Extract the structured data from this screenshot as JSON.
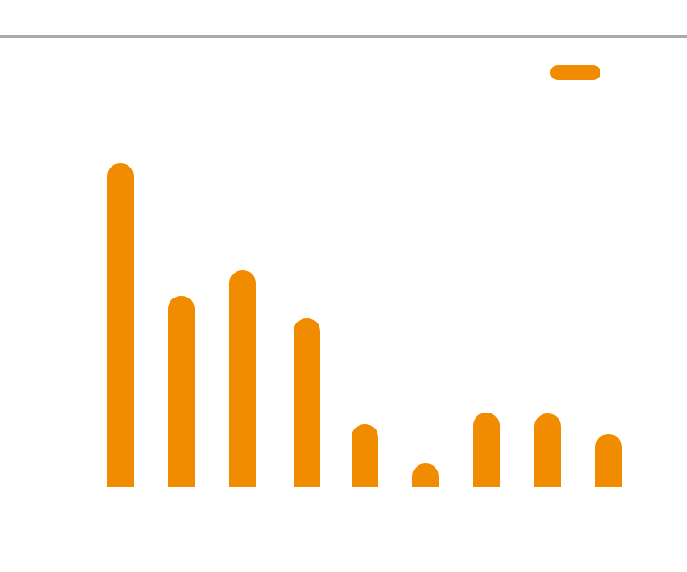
{
  "chart_data": {
    "type": "bar",
    "categories": [
      "",
      "",
      "",
      "",
      "",
      "",
      "",
      "",
      ""
    ],
    "series": [
      {
        "color": "#f18b00",
        "values": [
          364,
          215,
          244,
          190,
          71,
          27,
          84,
          83,
          60
        ]
      }
    ],
    "ylim": [
      0,
      364
    ],
    "grid": false,
    "legend": "top-right",
    "bar_style": "rounded-top"
  }
}
